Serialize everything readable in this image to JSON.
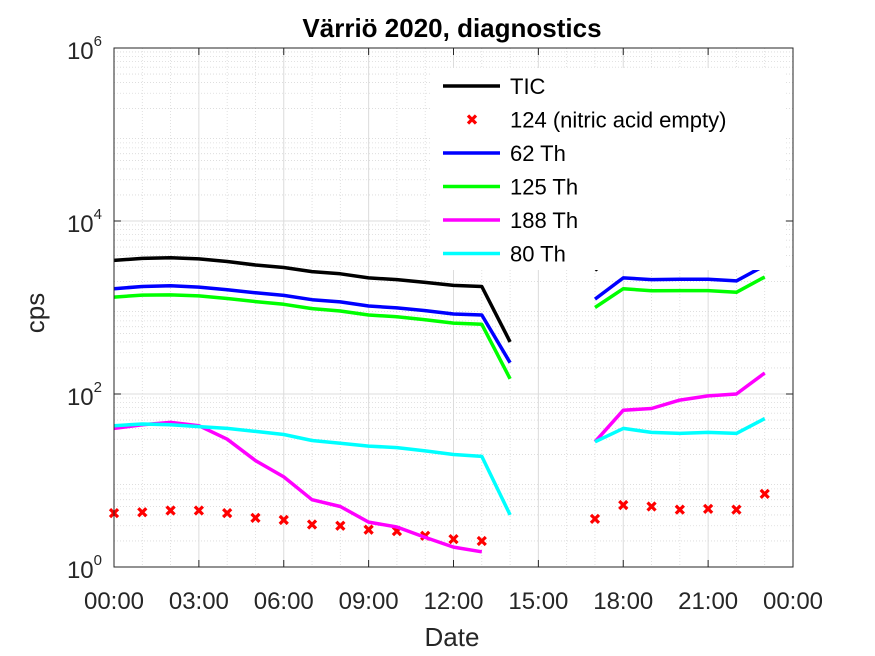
{
  "chart_data": {
    "type": "line",
    "title": "Värriö 2020, diagnostics",
    "xlabel": "Date",
    "ylabel": "cps",
    "yscale": "log",
    "ylim": [
      1,
      1000000
    ],
    "xlim": [
      "00:00",
      "24:00"
    ],
    "grid": true,
    "minor_grid": true,
    "legend_position": "top-right",
    "x_tick_labels": [
      "00:00",
      "03:00",
      "06:00",
      "09:00",
      "12:00",
      "15:00",
      "18:00",
      "21:00",
      "00:00"
    ],
    "x_ticks_hours": [
      0,
      3,
      6,
      9,
      12,
      15,
      18,
      21,
      24
    ],
    "y_ticks": [
      {
        "value": 1,
        "base": "10",
        "exp": "0"
      },
      {
        "value": 100,
        "base": "10",
        "exp": "2"
      },
      {
        "value": 10000,
        "base": "10",
        "exp": "4"
      },
      {
        "value": 1000000,
        "base": "10",
        "exp": "6"
      }
    ],
    "x": [
      0,
      1,
      2,
      3,
      4,
      5,
      6,
      7,
      8,
      9,
      10,
      11,
      12,
      13,
      14,
      15,
      16,
      17,
      18,
      19,
      20,
      21,
      22,
      23
    ],
    "series": [
      {
        "name": "TIC",
        "color": "#000000",
        "style": "line",
        "values": [
          3500,
          3700,
          3750,
          3650,
          3400,
          3100,
          2900,
          2600,
          2450,
          2200,
          2100,
          1950,
          1800,
          1750,
          400,
          null,
          null,
          2700,
          4600,
          4400,
          4450,
          4450,
          4250,
          6300
        ]
      },
      {
        "name": "124 (nitric acid empty)",
        "color": "#ff0000",
        "style": "marker",
        "values": [
          4.2,
          4.3,
          4.5,
          4.5,
          4.2,
          3.7,
          3.5,
          3.1,
          3.0,
          2.7,
          2.6,
          2.3,
          2.1,
          2.0,
          null,
          null,
          null,
          3.6,
          5.2,
          5.0,
          4.6,
          4.7,
          4.6,
          7.0
        ]
      },
      {
        "name": "62 Th",
        "color": "#0000ff",
        "style": "line",
        "values": [
          1650,
          1750,
          1780,
          1720,
          1600,
          1480,
          1380,
          1230,
          1160,
          1040,
          990,
          920,
          840,
          820,
          230,
          null,
          null,
          1250,
          2200,
          2100,
          2120,
          2120,
          2030,
          3050
        ]
      },
      {
        "name": "125 Th",
        "color": "#00ff00",
        "style": "line",
        "values": [
          1320,
          1390,
          1400,
          1360,
          1270,
          1170,
          1090,
          970,
          910,
          820,
          780,
          720,
          660,
          640,
          150,
          null,
          null,
          1000,
          1650,
          1560,
          1570,
          1570,
          1500,
          2250
        ]
      },
      {
        "name": "188 Th",
        "color": "#ff00ff",
        "style": "line",
        "values": [
          40,
          44,
          47,
          43,
          30,
          17,
          11,
          6,
          5,
          3.3,
          2.9,
          2.2,
          1.7,
          1.5,
          null,
          null,
          null,
          28,
          65,
          68,
          85,
          95,
          100,
          175
        ]
      },
      {
        "name": "80 Th",
        "color": "#00ffff",
        "style": "line",
        "values": [
          43,
          45,
          44,
          42,
          40,
          37,
          34,
          29,
          27,
          25,
          24,
          22,
          20,
          19,
          4,
          null,
          null,
          28,
          40,
          36,
          35,
          36,
          35,
          52
        ]
      }
    ]
  }
}
